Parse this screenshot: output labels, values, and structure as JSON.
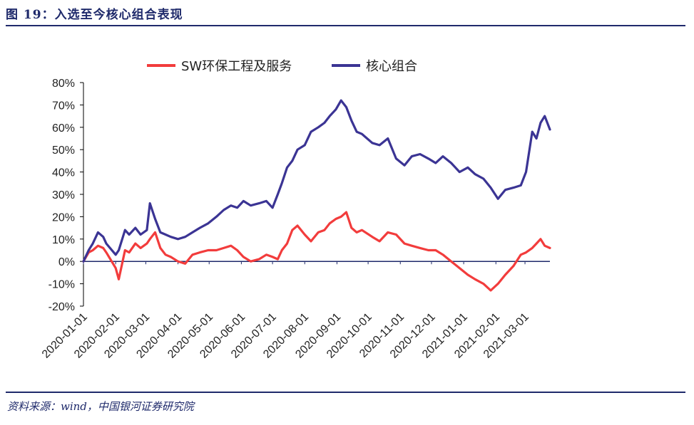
{
  "figure": {
    "title": "图 19：入选至今核心组合表现",
    "source": "资料来源：wind，中国银河证券研究院"
  },
  "colors": {
    "rule": "#1f2a6b",
    "sw_series": "#f23c3c",
    "core_series": "#3b3494",
    "axis": "#000000",
    "zero_line": "#1f2a6b"
  },
  "chart_data": {
    "type": "line",
    "title": "",
    "xlabel": "",
    "ylabel": "",
    "ylim": [
      -20,
      80
    ],
    "y_ticks": [
      "80%",
      "70%",
      "60%",
      "50%",
      "40%",
      "30%",
      "20%",
      "10%",
      "0%",
      "-10%",
      "-20%"
    ],
    "y_tick_values": [
      80,
      70,
      60,
      50,
      40,
      30,
      20,
      10,
      0,
      -10,
      -20
    ],
    "x_range": [
      "2020-01-01",
      "2021-03-25"
    ],
    "x_ticks": [
      "2020-01-01",
      "2020-02-01",
      "2020-03-01",
      "2020-04-01",
      "2020-05-01",
      "2020-06-01",
      "2020-07-01",
      "2020-08-01",
      "2020-09-01",
      "2020-10-01",
      "2020-11-01",
      "2020-12-01",
      "2021-01-01",
      "2021-02-01",
      "2021-03-01"
    ],
    "legend_position": "top",
    "grid": false,
    "series": [
      {
        "name": "SW环保工程及服务",
        "color": "#f23c3c",
        "x": [
          "2020-01-01",
          "2020-01-06",
          "2020-01-10",
          "2020-01-15",
          "2020-01-20",
          "2020-01-23",
          "2020-02-01",
          "2020-02-04",
          "2020-02-10",
          "2020-02-14",
          "2020-02-20",
          "2020-02-25",
          "2020-03-02",
          "2020-03-05",
          "2020-03-10",
          "2020-03-15",
          "2020-03-20",
          "2020-03-25",
          "2020-04-01",
          "2020-04-08",
          "2020-04-15",
          "2020-04-22",
          "2020-04-30",
          "2020-05-08",
          "2020-05-15",
          "2020-05-22",
          "2020-05-28",
          "2020-06-03",
          "2020-06-10",
          "2020-06-18",
          "2020-06-25",
          "2020-07-01",
          "2020-07-06",
          "2020-07-10",
          "2020-07-15",
          "2020-07-20",
          "2020-07-25",
          "2020-08-01",
          "2020-08-07",
          "2020-08-14",
          "2020-08-20",
          "2020-08-25",
          "2020-08-31",
          "2020-09-05",
          "2020-09-10",
          "2020-09-15",
          "2020-09-20",
          "2020-09-25",
          "2020-10-05",
          "2020-10-12",
          "2020-10-20",
          "2020-10-28",
          "2020-11-05",
          "2020-11-12",
          "2020-11-20",
          "2020-11-28",
          "2020-12-05",
          "2020-12-12",
          "2020-12-20",
          "2020-12-28",
          "2021-01-05",
          "2021-01-12",
          "2021-01-20",
          "2021-01-27",
          "2021-02-03",
          "2021-02-10",
          "2021-02-18",
          "2021-02-25",
          "2021-03-02",
          "2021-03-08",
          "2021-03-12",
          "2021-03-16",
          "2021-03-20",
          "2021-03-25"
        ],
        "values": [
          0,
          4,
          5,
          7,
          6,
          4,
          -3,
          -8,
          5,
          4,
          8,
          6,
          8,
          10,
          13,
          6,
          3,
          2,
          0,
          -1,
          3,
          4,
          5,
          5,
          6,
          7,
          5,
          2,
          0,
          1,
          3,
          2,
          1,
          5,
          8,
          14,
          16,
          12,
          9,
          13,
          14,
          17,
          19,
          20,
          22,
          15,
          13,
          14,
          11,
          9,
          13,
          12,
          8,
          7,
          6,
          5,
          5,
          3,
          0,
          -3,
          -6,
          -8,
          -10,
          -13,
          -10,
          -6,
          -2,
          3,
          4,
          6,
          8,
          10,
          7,
          6
        ]
      },
      {
        "name": "核心组合",
        "color": "#3b3494",
        "x": [
          "2020-01-01",
          "2020-01-06",
          "2020-01-10",
          "2020-01-15",
          "2020-01-20",
          "2020-01-23",
          "2020-02-01",
          "2020-02-04",
          "2020-02-10",
          "2020-02-14",
          "2020-02-20",
          "2020-02-25",
          "2020-03-02",
          "2020-03-05",
          "2020-03-10",
          "2020-03-15",
          "2020-03-20",
          "2020-03-25",
          "2020-04-01",
          "2020-04-08",
          "2020-04-15",
          "2020-04-22",
          "2020-04-30",
          "2020-05-08",
          "2020-05-15",
          "2020-05-22",
          "2020-05-28",
          "2020-06-03",
          "2020-06-10",
          "2020-06-18",
          "2020-06-25",
          "2020-07-01",
          "2020-07-06",
          "2020-07-10",
          "2020-07-15",
          "2020-07-20",
          "2020-07-25",
          "2020-08-01",
          "2020-08-07",
          "2020-08-14",
          "2020-08-20",
          "2020-08-25",
          "2020-08-31",
          "2020-09-05",
          "2020-09-10",
          "2020-09-15",
          "2020-09-20",
          "2020-09-25",
          "2020-10-05",
          "2020-10-12",
          "2020-10-20",
          "2020-10-28",
          "2020-11-05",
          "2020-11-12",
          "2020-11-20",
          "2020-11-28",
          "2020-12-05",
          "2020-12-12",
          "2020-12-20",
          "2020-12-28",
          "2021-01-05",
          "2021-01-12",
          "2021-01-20",
          "2021-01-27",
          "2021-02-03",
          "2021-02-10",
          "2021-02-18",
          "2021-02-25",
          "2021-03-02",
          "2021-03-08",
          "2021-03-12",
          "2021-03-16",
          "2021-03-20",
          "2021-03-25"
        ],
        "values": [
          0,
          5,
          8,
          13,
          11,
          8,
          3,
          5,
          14,
          12,
          15,
          12,
          14,
          26,
          19,
          13,
          12,
          11,
          10,
          11,
          13,
          15,
          17,
          20,
          23,
          25,
          24,
          27,
          25,
          26,
          27,
          24,
          30,
          35,
          42,
          45,
          50,
          52,
          58,
          60,
          62,
          65,
          68,
          72,
          69,
          63,
          58,
          57,
          53,
          52,
          55,
          46,
          43,
          47,
          48,
          46,
          44,
          47,
          44,
          40,
          42,
          39,
          37,
          33,
          28,
          32,
          33,
          34,
          40,
          58,
          55,
          62,
          65,
          59
        ]
      }
    ]
  }
}
